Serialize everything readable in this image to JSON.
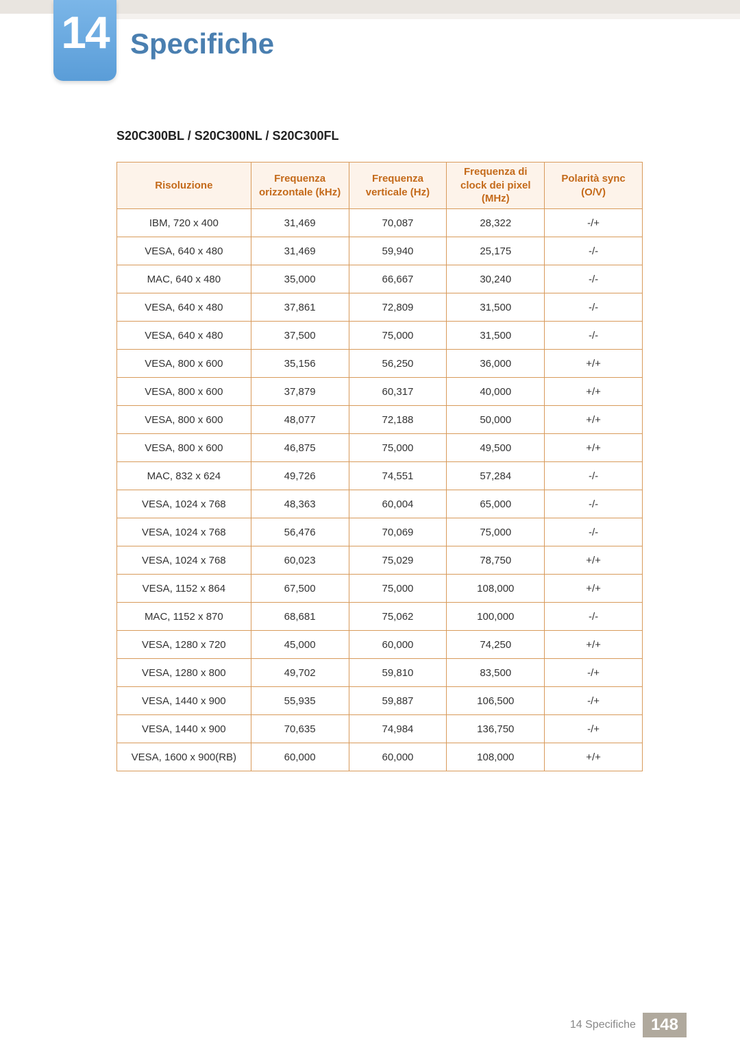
{
  "header": {
    "chapter_number": "14",
    "chapter_title": "Specifiche",
    "badge_bg_top": "#7bb6e8",
    "badge_bg_bottom": "#5a9dd8",
    "title_color": "#4a7fb0"
  },
  "model_heading": "S20C300BL / S20C300NL / S20C300FL",
  "table": {
    "header_bg": "#fdf3ea",
    "header_color": "#c46a1a",
    "border_color": "#d89a5a",
    "columns": [
      "Risoluzione",
      "Frequenza orizzontale (kHz)",
      "Frequenza verticale (Hz)",
      "Frequenza di clock dei pixel (MHz)",
      "Polarità sync (O/V)"
    ],
    "rows": [
      [
        "IBM, 720 x 400",
        "31,469",
        "70,087",
        "28,322",
        "-/+"
      ],
      [
        "VESA, 640 x 480",
        "31,469",
        "59,940",
        "25,175",
        "-/-"
      ],
      [
        "MAC, 640 x 480",
        "35,000",
        "66,667",
        "30,240",
        "-/-"
      ],
      [
        "VESA, 640 x 480",
        "37,861",
        "72,809",
        "31,500",
        "-/-"
      ],
      [
        "VESA, 640 x 480",
        "37,500",
        "75,000",
        "31,500",
        "-/-"
      ],
      [
        "VESA, 800 x 600",
        "35,156",
        "56,250",
        "36,000",
        "+/+"
      ],
      [
        "VESA, 800 x 600",
        "37,879",
        "60,317",
        "40,000",
        "+/+"
      ],
      [
        "VESA, 800 x 600",
        "48,077",
        "72,188",
        "50,000",
        "+/+"
      ],
      [
        "VESA, 800 x 600",
        "46,875",
        "75,000",
        "49,500",
        "+/+"
      ],
      [
        "MAC, 832 x 624",
        "49,726",
        "74,551",
        "57,284",
        "-/-"
      ],
      [
        "VESA, 1024 x 768",
        "48,363",
        "60,004",
        "65,000",
        "-/-"
      ],
      [
        "VESA, 1024 x 768",
        "56,476",
        "70,069",
        "75,000",
        "-/-"
      ],
      [
        "VESA, 1024 x 768",
        "60,023",
        "75,029",
        "78,750",
        "+/+"
      ],
      [
        "VESA, 1152 x 864",
        "67,500",
        "75,000",
        "108,000",
        "+/+"
      ],
      [
        "MAC, 1152 x 870",
        "68,681",
        "75,062",
        "100,000",
        "-/-"
      ],
      [
        "VESA, 1280 x 720",
        "45,000",
        "60,000",
        "74,250",
        "+/+"
      ],
      [
        "VESA, 1280 x 800",
        "49,702",
        "59,810",
        "83,500",
        "-/+"
      ],
      [
        "VESA, 1440 x 900",
        "55,935",
        "59,887",
        "106,500",
        "-/+"
      ],
      [
        "VESA, 1440 x 900",
        "70,635",
        "74,984",
        "136,750",
        "-/+"
      ],
      [
        "VESA, 1600 x 900(RB)",
        "60,000",
        "60,000",
        "108,000",
        "+/+"
      ]
    ]
  },
  "footer": {
    "label": "14 Specifiche",
    "page": "148",
    "page_bg": "#b0a99d"
  }
}
